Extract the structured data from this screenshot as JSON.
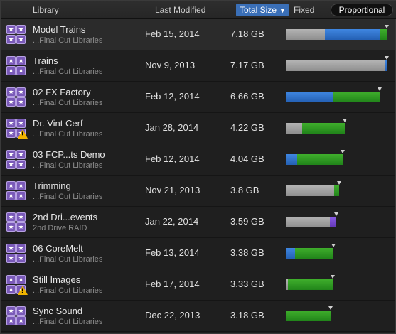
{
  "header": {
    "library": "Library",
    "last_modified": "Last Modified",
    "total_size": "Total Size",
    "sort_arrow": "▼",
    "fixed": "Fixed",
    "proportional": "Proportional"
  },
  "colors": {
    "gray": "#a0a0a0",
    "blue": "#2f6fcc",
    "green": "#2e9a22",
    "purple": "#7446d0",
    "warning": "#f0b400",
    "accent": "#3a6fb7"
  },
  "rows": [
    {
      "name": "Model Trains",
      "sub": "...Final Cut Libraries",
      "date": "Feb 15, 2014",
      "size": "7.18 GB",
      "warning": false,
      "usage": [
        {
          "color": "gray",
          "fraction": 0.39
        },
        {
          "color": "blue",
          "fraction": 0.55
        },
        {
          "color": "green",
          "fraction": 0.06
        }
      ],
      "scale": 1.0
    },
    {
      "name": "Trains",
      "sub": "...Final Cut Libraries",
      "date": "Nov 9, 2013",
      "size": "7.17 GB",
      "warning": false,
      "usage": [
        {
          "color": "gray",
          "fraction": 0.98
        },
        {
          "color": "blue",
          "fraction": 0.02
        }
      ],
      "scale": 0.999
    },
    {
      "name": "02 FX Factory",
      "sub": "...Final Cut Libraries",
      "date": "Feb 12, 2014",
      "size": "6.66 GB",
      "warning": false,
      "usage": [
        {
          "color": "blue",
          "fraction": 0.5
        },
        {
          "color": "green",
          "fraction": 0.5
        }
      ],
      "scale": 0.928
    },
    {
      "name": "Dr. Vint Cerf",
      "sub": "...Final Cut Libraries",
      "date": "Jan 28, 2014",
      "size": "4.22 GB",
      "warning": true,
      "usage": [
        {
          "color": "gray",
          "fraction": 0.28
        },
        {
          "color": "green",
          "fraction": 0.72
        }
      ],
      "scale": 0.588
    },
    {
      "name": "03 FCP...ts Demo",
      "sub": "...Final Cut Libraries",
      "date": "Feb 12, 2014",
      "size": "4.04 GB",
      "warning": false,
      "usage": [
        {
          "color": "blue",
          "fraction": 0.2
        },
        {
          "color": "green",
          "fraction": 0.8
        }
      ],
      "scale": 0.563
    },
    {
      "name": "Trimming",
      "sub": "...Final Cut Libraries",
      "date": "Nov 21, 2013",
      "size": "3.8 GB",
      "warning": false,
      "usage": [
        {
          "color": "gray",
          "fraction": 0.9
        },
        {
          "color": "green",
          "fraction": 0.1
        }
      ],
      "scale": 0.529
    },
    {
      "name": "2nd Dri...events",
      "sub": "2nd Drive RAID",
      "date": "Jan 22, 2014",
      "size": "3.59 GB",
      "warning": false,
      "usage": [
        {
          "color": "gray",
          "fraction": 0.87
        },
        {
          "color": "purple",
          "fraction": 0.13
        }
      ],
      "scale": 0.5
    },
    {
      "name": "06 CoreMelt",
      "sub": "...Final Cut Libraries",
      "date": "Feb 13, 2014",
      "size": "3.38 GB",
      "warning": false,
      "usage": [
        {
          "color": "blue",
          "fraction": 0.2
        },
        {
          "color": "green",
          "fraction": 0.8
        }
      ],
      "scale": 0.471
    },
    {
      "name": "Still Images",
      "sub": "...Final Cut Libraries",
      "date": "Feb 17, 2014",
      "size": "3.33 GB",
      "warning": true,
      "usage": [
        {
          "color": "gray",
          "fraction": 0.05
        },
        {
          "color": "green",
          "fraction": 0.95
        }
      ],
      "scale": 0.464
    },
    {
      "name": "Sync Sound",
      "sub": "...Final Cut Libraries",
      "date": "Dec 22, 2013",
      "size": "3.18 GB",
      "warning": false,
      "usage": [
        {
          "color": "green",
          "fraction": 1.0
        }
      ],
      "scale": 0.443
    }
  ]
}
